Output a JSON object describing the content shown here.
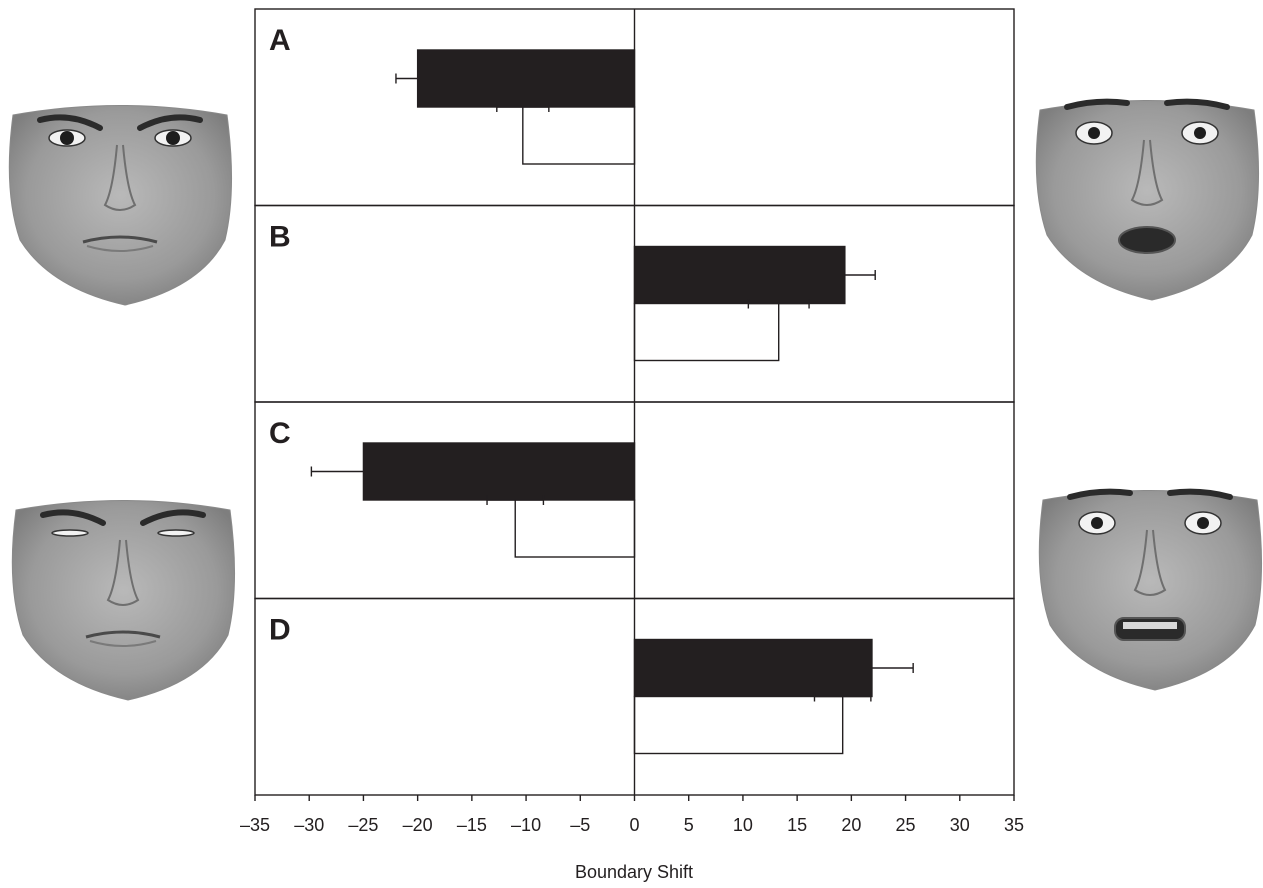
{
  "chart_data": {
    "type": "bar",
    "orientation": "horizontal",
    "xlabel": "Boundary Shift",
    "xlim": [
      -35,
      35
    ],
    "xticks": [
      -35,
      -30,
      -25,
      -20,
      -15,
      -10,
      -5,
      0,
      5,
      10,
      15,
      20,
      25,
      30,
      35
    ],
    "xtick_labels": [
      "–35",
      "–30",
      "–25",
      "–20",
      "–15",
      "–10",
      "–5",
      "0",
      "5",
      "10",
      "15",
      "20",
      "25",
      "30",
      "35"
    ],
    "grid": false,
    "legend": "none",
    "colors": {
      "filled_bar": "#231f20",
      "open_bar": "#ffffff",
      "stroke": "#231f20"
    },
    "panels": [
      {
        "label": "A",
        "bars": [
          {
            "style": "filled",
            "value": -20.0,
            "error": 2.0
          },
          {
            "style": "open",
            "value": -10.3,
            "error": 2.4
          }
        ]
      },
      {
        "label": "B",
        "bars": [
          {
            "style": "filled",
            "value": 19.4,
            "error": 2.8
          },
          {
            "style": "open",
            "value": 13.3,
            "error": 2.8
          }
        ]
      },
      {
        "label": "C",
        "bars": [
          {
            "style": "filled",
            "value": -25.0,
            "error": 4.8
          },
          {
            "style": "open",
            "value": -11.0,
            "error": 2.6
          }
        ]
      },
      {
        "label": "D",
        "bars": [
          {
            "style": "filled",
            "value": 21.9,
            "error": 3.8
          },
          {
            "style": "open",
            "value": 19.2,
            "error": 2.6
          }
        ]
      }
    ]
  },
  "faces": [
    {
      "name": "face-angry",
      "row": "upper",
      "side": "left"
    },
    {
      "name": "face-surprised",
      "row": "upper",
      "side": "right"
    },
    {
      "name": "face-disgusted",
      "row": "lower",
      "side": "left"
    },
    {
      "name": "face-fearful",
      "row": "lower",
      "side": "right"
    }
  ]
}
